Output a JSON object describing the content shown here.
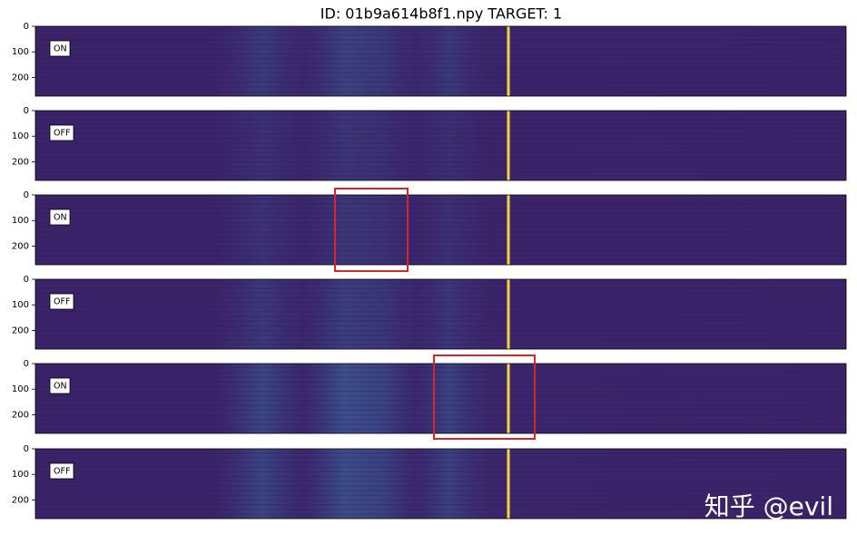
{
  "title": "ID: 01b9a614b8f1.npy TARGET: 1",
  "watermark": "知乎 @evil",
  "chart_data": [
    {
      "type": "heatmap",
      "label": "ON",
      "ylim": [
        0,
        273
      ],
      "yticks": [
        0,
        100,
        200
      ]
    },
    {
      "type": "heatmap",
      "label": "OFF",
      "ylim": [
        0,
        273
      ],
      "yticks": [
        0,
        100,
        200
      ]
    },
    {
      "type": "heatmap",
      "label": "ON",
      "ylim": [
        0,
        273
      ],
      "yticks": [
        0,
        100,
        200
      ]
    },
    {
      "type": "heatmap",
      "label": "OFF",
      "ylim": [
        0,
        273
      ],
      "yticks": [
        0,
        100,
        200
      ]
    },
    {
      "type": "heatmap",
      "label": "ON",
      "ylim": [
        0,
        273
      ],
      "yticks": [
        0,
        100,
        200
      ]
    },
    {
      "type": "heatmap",
      "label": "OFF",
      "ylim": [
        0,
        273
      ],
      "yticks": [
        0,
        100,
        200
      ]
    }
  ]
}
